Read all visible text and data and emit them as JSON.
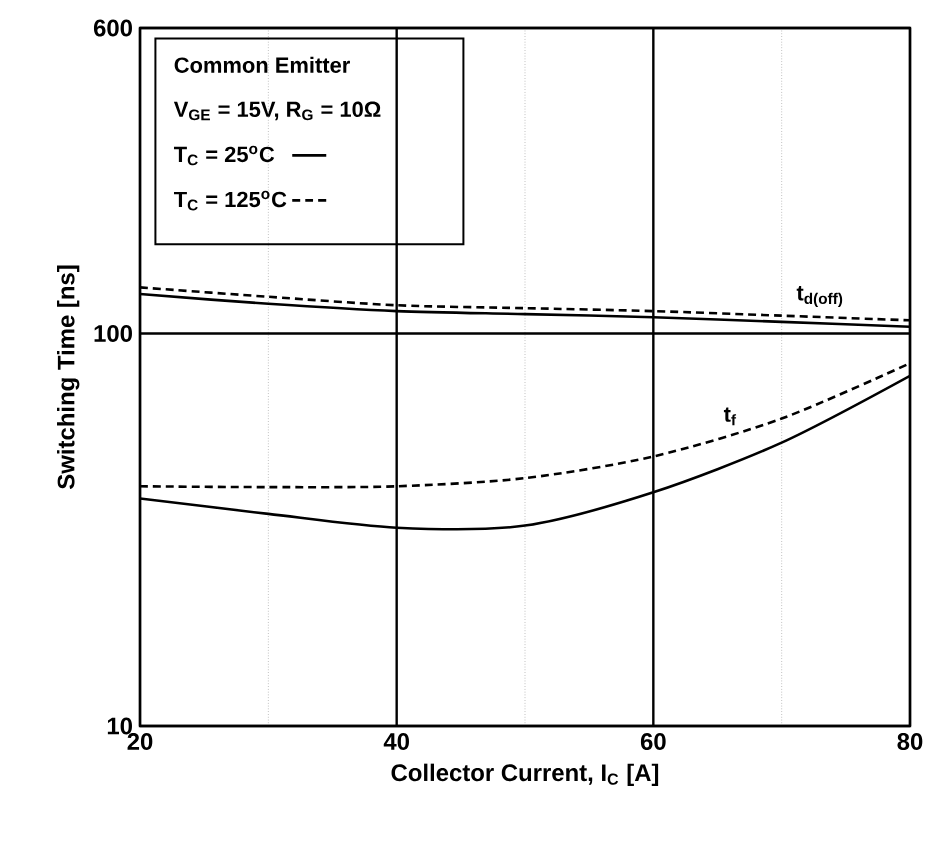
{
  "chart_data": {
    "type": "line",
    "xlabel": "Collector Current, I$_{C}$ [A]",
    "ylabel": "Switching Time [ns]",
    "xlim": [
      20,
      80
    ],
    "xticks": [
      20,
      40,
      60,
      80
    ],
    "ylim": [
      10,
      600
    ],
    "yticks": [
      10,
      100,
      600
    ],
    "log": "y",
    "grid": true,
    "legend": "top left",
    "marker": "none",
    "series": [
      {
        "name": "T$_{C}$ = 25$^{o}$C",
        "color": "#000000",
        "line_style": "solid",
        "x": [
          20,
          30,
          40,
          50,
          60,
          70,
          80
        ],
        "values": [
          126,
          119,
          114,
          112,
          110,
          107,
          104
        ]
      },
      {
        "name": "T$_{C}$ = 125$^{o}$C",
        "color": "#000000",
        "line_style": "dashed",
        "x": [
          20,
          30,
          40,
          50,
          60,
          70,
          80
        ],
        "values": [
          131,
          124,
          118,
          116,
          114,
          111,
          108
        ]
      },
      {
        "color": "#000000",
        "line_style": "solid",
        "x": [
          20,
          30,
          40,
          50,
          60,
          70,
          80
        ],
        "values": [
          38,
          34.7,
          32,
          32.4,
          39.4,
          52.7,
          78
        ]
      },
      {
        "color": "#000000",
        "line_style": "dashed",
        "x": [
          20,
          30,
          40,
          50,
          60,
          70,
          80
        ],
        "values": [
          40.8,
          40.6,
          40.8,
          42.8,
          48.6,
          60.7,
          84
        ]
      }
    ],
    "annotations": [
      "Common Emitter",
      "V$_{GE}$ = 15V, R$_{G}$ = 10Ω",
      {
        "text": "t$_{d(off)}$",
        "x": 73,
        "y": 112
      },
      {
        "text": "t$_{f}$",
        "x": 66,
        "y": 56
      }
    ]
  }
}
